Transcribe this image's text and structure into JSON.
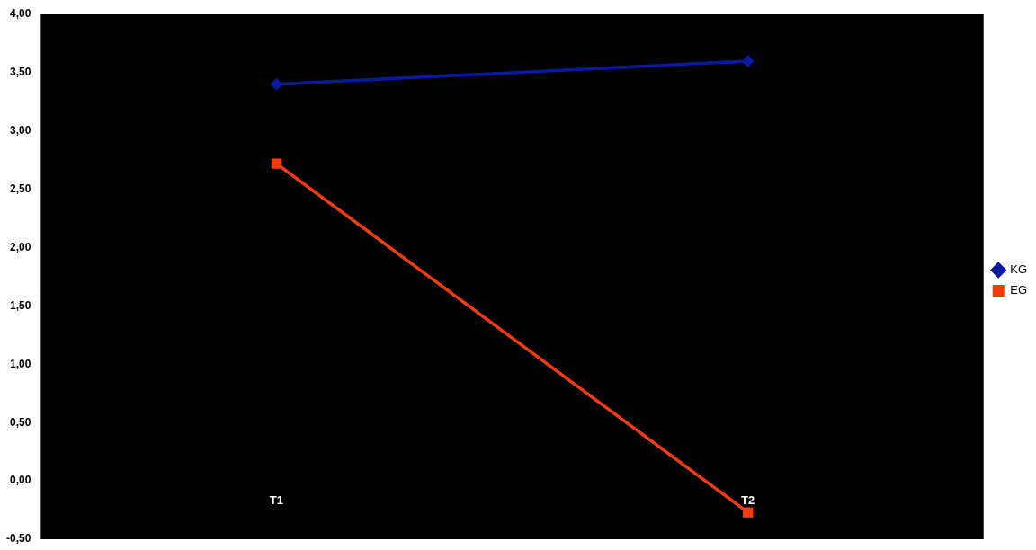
{
  "chart_data": {
    "type": "line",
    "categories": [
      "T1",
      "T2"
    ],
    "series": [
      {
        "name": "KG",
        "color": "#0a1aa0",
        "values": [
          3.4,
          3.6
        ],
        "marker": "diamond"
      },
      {
        "name": "EG",
        "color": "#f03c10",
        "values": [
          2.72,
          -0.27
        ],
        "marker": "square"
      }
    ],
    "ylim": [
      -0.5,
      4
    ],
    "yticks": [
      {
        "value": -0.5,
        "label": "-0,50"
      },
      {
        "value": 0,
        "label": "0,00"
      },
      {
        "value": 0.5,
        "label": "0,50"
      },
      {
        "value": 1,
        "label": "1,00"
      },
      {
        "value": 1.5,
        "label": "1,50"
      },
      {
        "value": 2,
        "label": "2,00"
      },
      {
        "value": 2.5,
        "label": "2,50"
      },
      {
        "value": 3,
        "label": "3,00"
      },
      {
        "value": 3.5,
        "label": "3,50"
      },
      {
        "value": 4,
        "label": "4,00"
      }
    ],
    "grid": false,
    "legend": "right",
    "line_style": "solid"
  }
}
